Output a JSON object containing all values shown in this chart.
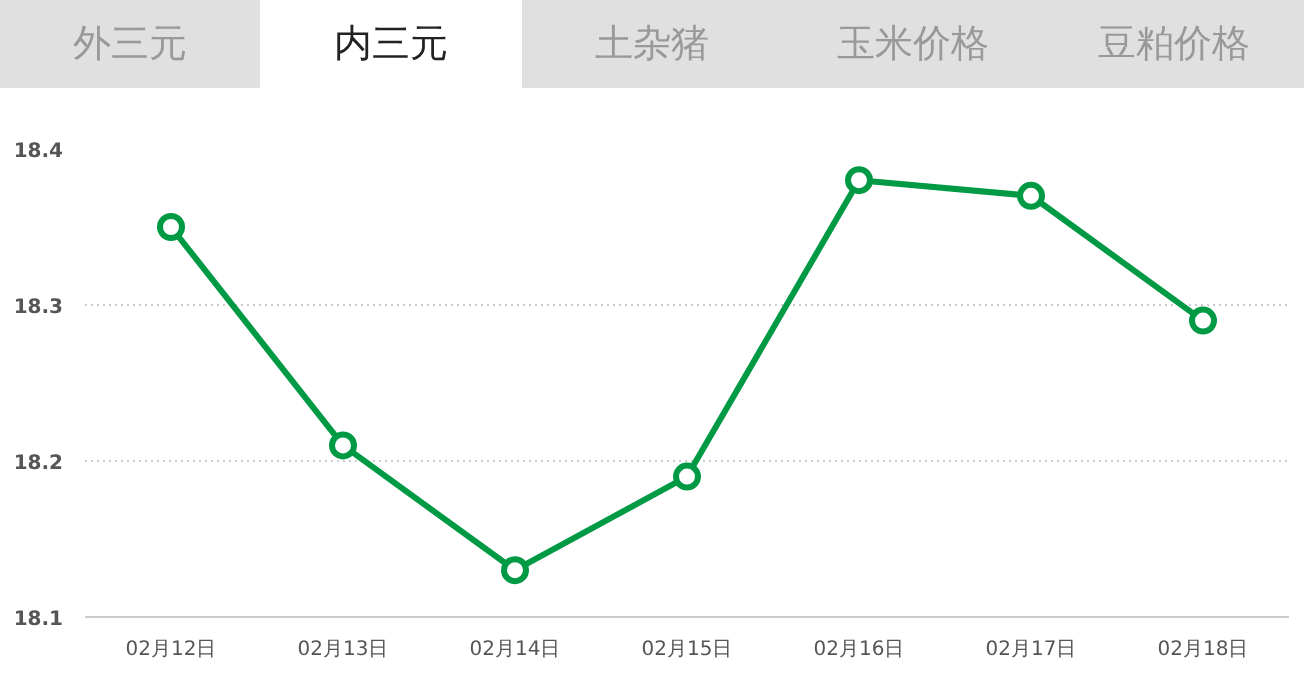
{
  "chart_data": {
    "type": "line",
    "annotations": [
      "外三元",
      "内三元",
      "土杂猪",
      "玉米价格",
      "豆粕价格"
    ],
    "categories": [
      "02月12日",
      "02月13日",
      "02月14日",
      "02月15日",
      "02月16日",
      "02月17日",
      "02月18日"
    ],
    "series": [
      {
        "color": "#009944",
        "values": [
          18.35,
          18.21,
          18.13,
          18.19,
          18.38,
          18.37,
          18.29
        ]
      }
    ],
    "ylim": [
      18.1,
      18.4
    ],
    "yticks": [
      18.1,
      18.2,
      18.3,
      18.4
    ],
    "grid": "y",
    "marker": "circle",
    "line_style": "solid"
  }
}
